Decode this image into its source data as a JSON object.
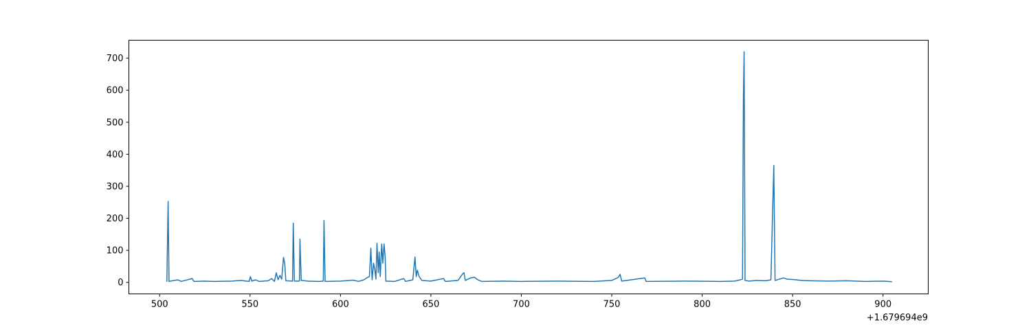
{
  "chart_data": {
    "type": "line",
    "title": "",
    "xlabel": "",
    "ylabel": "",
    "x_offset_label": "+1.679694e9",
    "xlim": [
      483,
      925
    ],
    "ylim": [
      -36,
      756
    ],
    "xticks": [
      500,
      550,
      600,
      650,
      700,
      750,
      800,
      850,
      900
    ],
    "yticks": [
      0,
      100,
      200,
      300,
      400,
      500,
      600,
      700
    ],
    "grid": false,
    "color": "#1f77b4",
    "series": [
      {
        "values": [
          [
            504,
            2
          ],
          [
            504.7,
            253
          ],
          [
            505.2,
            3
          ],
          [
            510,
            8
          ],
          [
            512,
            3
          ],
          [
            518,
            12
          ],
          [
            519,
            3
          ],
          [
            525,
            4
          ],
          [
            530,
            3
          ],
          [
            540,
            4
          ],
          [
            545,
            6
          ],
          [
            549.5,
            3
          ],
          [
            550.2,
            18
          ],
          [
            551,
            4
          ],
          [
            553,
            8
          ],
          [
            555,
            3
          ],
          [
            560,
            5
          ],
          [
            562,
            12
          ],
          [
            563.5,
            3
          ],
          [
            564.5,
            30
          ],
          [
            565.5,
            8
          ],
          [
            566.5,
            22
          ],
          [
            567.5,
            10
          ],
          [
            568.5,
            78
          ],
          [
            569.2,
            58
          ],
          [
            569.8,
            5
          ],
          [
            573.5,
            4
          ],
          [
            573.9,
            185
          ],
          [
            574.5,
            4
          ],
          [
            577.3,
            4
          ],
          [
            577.6,
            135
          ],
          [
            578.3,
            6
          ],
          [
            582,
            4
          ],
          [
            588,
            3
          ],
          [
            590.5,
            4
          ],
          [
            590.9,
            193
          ],
          [
            591.5,
            3
          ],
          [
            600,
            4
          ],
          [
            607,
            7
          ],
          [
            610,
            3
          ],
          [
            613,
            8
          ],
          [
            614.5,
            14
          ],
          [
            616,
            18
          ],
          [
            616.8,
            107
          ],
          [
            617.5,
            8
          ],
          [
            618.3,
            60
          ],
          [
            619,
            40
          ],
          [
            619.6,
            10
          ],
          [
            620.2,
            122
          ],
          [
            620.9,
            30
          ],
          [
            621.4,
            95
          ],
          [
            622,
            18
          ],
          [
            622.8,
            120
          ],
          [
            623.4,
            60
          ],
          [
            624.1,
            120
          ],
          [
            624.7,
            80
          ],
          [
            625.1,
            4
          ],
          [
            630,
            3
          ],
          [
            635,
            12
          ],
          [
            636,
            3
          ],
          [
            640,
            8
          ],
          [
            641.2,
            79
          ],
          [
            641.9,
            18
          ],
          [
            642.5,
            38
          ],
          [
            643.5,
            18
          ],
          [
            645,
            6
          ],
          [
            650,
            4
          ],
          [
            657,
            12
          ],
          [
            658,
            3
          ],
          [
            665,
            6
          ],
          [
            667.5,
            26
          ],
          [
            668.3,
            30
          ],
          [
            669,
            6
          ],
          [
            672,
            14
          ],
          [
            674,
            16
          ],
          [
            676,
            8
          ],
          [
            678,
            3
          ],
          [
            690,
            4
          ],
          [
            700,
            3
          ],
          [
            720,
            4
          ],
          [
            740,
            3
          ],
          [
            750,
            6
          ],
          [
            753.5,
            15
          ],
          [
            754.6,
            25
          ],
          [
            755.5,
            4
          ],
          [
            768.3,
            14
          ],
          [
            769,
            3
          ],
          [
            790,
            4
          ],
          [
            810,
            3
          ],
          [
            818,
            4
          ],
          [
            821,
            8
          ],
          [
            822.3,
            10
          ],
          [
            822.8,
            580
          ],
          [
            823.2,
            720
          ],
          [
            823.7,
            6
          ],
          [
            826,
            4
          ],
          [
            830,
            6
          ],
          [
            835,
            5
          ],
          [
            838,
            8
          ],
          [
            839.6,
            365
          ],
          [
            840.3,
            6
          ],
          [
            845,
            14
          ],
          [
            847,
            10
          ],
          [
            850,
            9
          ],
          [
            855,
            6
          ],
          [
            860,
            5
          ],
          [
            870,
            4
          ],
          [
            880,
            5
          ],
          [
            890,
            3
          ],
          [
            900,
            4
          ],
          [
            905,
            2
          ]
        ]
      }
    ]
  }
}
